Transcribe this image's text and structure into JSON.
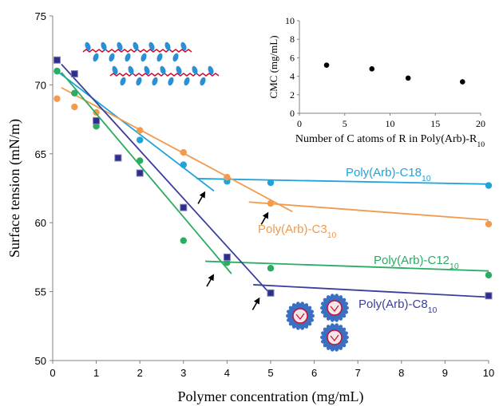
{
  "chart_data": [
    {
      "type": "scatter",
      "xlabel": "Polymer concentration (mg/mL)",
      "ylabel": "Surface tension (mN/m)",
      "xlim": [
        0,
        10
      ],
      "ylim": [
        50,
        75
      ],
      "x_ticks": [
        "0",
        "1",
        "2",
        "3",
        "4",
        "5",
        "6",
        "7",
        "8",
        "9",
        "10"
      ],
      "y_ticks": [
        "50",
        "55",
        "60",
        "65",
        "70",
        "75"
      ],
      "grid": false,
      "series": [
        {
          "name": "Poly(Arb)-C18",
          "name_sub": "10",
          "color": "#1fa3d9",
          "marker": "circle",
          "points": [
            [
              0.1,
              71.0
            ],
            [
              2.0,
              66.0
            ],
            [
              3.0,
              64.2
            ],
            [
              4.0,
              63.0
            ],
            [
              5.0,
              62.9
            ],
            [
              10.0,
              62.7
            ]
          ],
          "fit_lines": [
            [
              [
                0.1,
                71.0
              ],
              [
                3.7,
                62.3
              ]
            ],
            [
              [
                3.3,
                63.2
              ],
              [
                10.0,
                62.8
              ]
            ]
          ],
          "arrow_at": [
            3.5,
            62.3
          ]
        },
        {
          "name": "Poly(Arb)-C3",
          "name_sub": "10",
          "color": "#f29a4e",
          "marker": "circle",
          "points": [
            [
              0.1,
              69.0
            ],
            [
              0.5,
              68.4
            ],
            [
              1.0,
              68.0
            ],
            [
              2.0,
              66.7
            ],
            [
              3.0,
              65.1
            ],
            [
              4.0,
              63.3
            ],
            [
              5.0,
              61.4
            ],
            [
              10.0,
              59.9
            ]
          ],
          "fit_lines": [
            [
              [
                0.2,
                69.8
              ],
              [
                5.5,
                60.8
              ]
            ],
            [
              [
                4.5,
                61.5
              ],
              [
                10.0,
                60.2
              ]
            ]
          ],
          "arrow_at": [
            4.95,
            60.8
          ]
        },
        {
          "name": "Poly(Arb)-C12",
          "name_sub": "10",
          "color": "#2aad62",
          "marker": "circle",
          "points": [
            [
              0.1,
              71.0
            ],
            [
              0.5,
              69.4
            ],
            [
              1.0,
              67.0
            ],
            [
              2.0,
              64.5
            ],
            [
              3.0,
              58.7
            ],
            [
              4.0,
              57.1
            ],
            [
              5.0,
              56.7
            ],
            [
              10.0,
              56.2
            ]
          ],
          "fit_lines": [
            [
              [
                0.2,
                70.9
              ],
              [
                4.1,
                56.3
              ]
            ],
            [
              [
                3.5,
                57.2
              ],
              [
                10.0,
                56.5
              ]
            ]
          ],
          "arrow_at": [
            3.7,
            56.3
          ]
        },
        {
          "name": "Poly(Arb)-C8",
          "name_sub": "10",
          "color": "#3a3f9e",
          "marker": "square",
          "points": [
            [
              0.1,
              71.8
            ],
            [
              0.5,
              70.8
            ],
            [
              1.0,
              67.4
            ],
            [
              1.5,
              64.7
            ],
            [
              2.0,
              63.6
            ],
            [
              3.0,
              61.1
            ],
            [
              4.0,
              57.5
            ],
            [
              5.0,
              54.9
            ],
            [
              10.0,
              54.7
            ]
          ],
          "fit_lines": [
            [
              [
                0.2,
                71.5
              ],
              [
                5.0,
                54.8
              ]
            ],
            [
              [
                4.6,
                55.5
              ],
              [
                10.0,
                54.6
              ]
            ]
          ],
          "arrow_at": [
            4.75,
            54.6
          ]
        }
      ]
    },
    {
      "type": "scatter",
      "xlabel": "Number of C atoms of R in Poly(Arb)-R",
      "xlabel_sub": "10",
      "ylabel": "CMC (mg/mL)",
      "xlim": [
        0,
        20
      ],
      "ylim": [
        0,
        10
      ],
      "x_ticks": [
        "0",
        "5",
        "10",
        "15",
        "20"
      ],
      "y_ticks": [
        "0",
        "2",
        "4",
        "6",
        "8",
        "10"
      ],
      "color": "#000000",
      "points": [
        [
          3,
          5.2
        ],
        [
          8,
          4.8
        ],
        [
          12,
          3.8
        ],
        [
          18,
          3.4
        ]
      ]
    }
  ],
  "illustrations": {
    "polymer_chain_color": "#c8102e",
    "side_group_color": "#2a8fd4",
    "micelle_color": "#3a6fc4",
    "micelle_core_color": "#c8102e"
  }
}
